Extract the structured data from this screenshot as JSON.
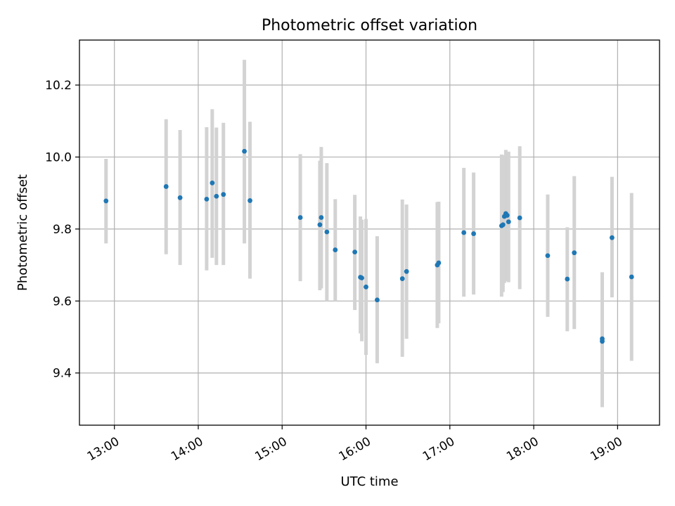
{
  "chart_data": {
    "type": "scatter",
    "title": "Photometric offset variation",
    "xlabel": "UTC time",
    "ylabel": "Photometric offset",
    "x_tick_labels": [
      "13:00",
      "14:00",
      "15:00",
      "16:00",
      "17:00",
      "18:00",
      "19:00"
    ],
    "y_tick_labels": [
      "9.4",
      "9.6",
      "9.8",
      "10.0",
      "10.2"
    ],
    "xlim": [
      "12:35",
      "19:30"
    ],
    "ylim": [
      9.255,
      10.325
    ],
    "grid": true,
    "points": [
      {
        "x": "12:54",
        "y": 9.878,
        "err_low": 9.76,
        "err_high": 9.995
      },
      {
        "x": "13:37",
        "y": 9.918,
        "err_low": 9.73,
        "err_high": 10.105
      },
      {
        "x": "13:47",
        "y": 9.887,
        "err_low": 9.7,
        "err_high": 10.075
      },
      {
        "x": "14:06",
        "y": 9.883,
        "err_low": 9.685,
        "err_high": 10.083
      },
      {
        "x": "14:10",
        "y": 9.928,
        "err_low": 9.72,
        "err_high": 10.133
      },
      {
        "x": "14:13",
        "y": 9.891,
        "err_low": 9.7,
        "err_high": 10.082
      },
      {
        "x": "14:18",
        "y": 9.896,
        "err_low": 9.7,
        "err_high": 10.095
      },
      {
        "x": "14:33",
        "y": 10.016,
        "err_low": 9.76,
        "err_high": 10.27
      },
      {
        "x": "14:37",
        "y": 9.879,
        "err_low": 9.662,
        "err_high": 10.098
      },
      {
        "x": "15:13",
        "y": 9.832,
        "err_low": 9.655,
        "err_high": 10.008
      },
      {
        "x": "15:27",
        "y": 9.812,
        "err_low": 9.63,
        "err_high": 9.99
      },
      {
        "x": "15:28",
        "y": 9.832,
        "err_low": 9.635,
        "err_high": 10.028
      },
      {
        "x": "15:32",
        "y": 9.792,
        "err_low": 9.6,
        "err_high": 9.983
      },
      {
        "x": "15:38",
        "y": 9.742,
        "err_low": 9.6,
        "err_high": 9.883
      },
      {
        "x": "15:52",
        "y": 9.736,
        "err_low": 9.575,
        "err_high": 9.895
      },
      {
        "x": "15:56",
        "y": 9.666,
        "err_low": 9.51,
        "err_high": 9.835
      },
      {
        "x": "15:57",
        "y": 9.664,
        "err_low": 9.488,
        "err_high": 9.826
      },
      {
        "x": "16:00",
        "y": 9.639,
        "err_low": 9.45,
        "err_high": 9.828
      },
      {
        "x": "16:08",
        "y": 9.603,
        "err_low": 9.427,
        "err_high": 9.78
      },
      {
        "x": "16:26",
        "y": 9.662,
        "err_low": 9.445,
        "err_high": 9.882
      },
      {
        "x": "16:29",
        "y": 9.682,
        "err_low": 9.495,
        "err_high": 9.868
      },
      {
        "x": "16:51",
        "y": 9.7,
        "err_low": 9.525,
        "err_high": 9.875
      },
      {
        "x": "16:52",
        "y": 9.706,
        "err_low": 9.538,
        "err_high": 9.876
      },
      {
        "x": "17:10",
        "y": 9.79,
        "err_low": 9.612,
        "err_high": 9.97
      },
      {
        "x": "17:17",
        "y": 9.787,
        "err_low": 9.618,
        "err_high": 9.957
      },
      {
        "x": "17:37",
        "y": 9.809,
        "err_low": 9.612,
        "err_high": 10.007
      },
      {
        "x": "17:38",
        "y": 9.812,
        "err_low": 9.625,
        "err_high": 10.0
      },
      {
        "x": "17:39",
        "y": 9.835,
        "err_low": 9.65,
        "err_high": 10.005
      },
      {
        "x": "17:40",
        "y": 9.843,
        "err_low": 9.66,
        "err_high": 10.02
      },
      {
        "x": "17:41",
        "y": 9.838,
        "err_low": 9.655,
        "err_high": 10.0
      },
      {
        "x": "17:42",
        "y": 9.82,
        "err_low": 9.652,
        "err_high": 10.015
      },
      {
        "x": "17:50",
        "y": 9.831,
        "err_low": 9.633,
        "err_high": 10.03
      },
      {
        "x": "18:10",
        "y": 9.726,
        "err_low": 9.556,
        "err_high": 9.896
      },
      {
        "x": "18:24",
        "y": 9.661,
        "err_low": 9.516,
        "err_high": 9.805
      },
      {
        "x": "18:29",
        "y": 9.734,
        "err_low": 9.522,
        "err_high": 9.947
      },
      {
        "x": "18:49",
        "y": 9.488,
        "err_low": 9.305,
        "err_high": 9.668
      },
      {
        "x": "18:49",
        "y": 9.495,
        "err_low": 9.31,
        "err_high": 9.68
      },
      {
        "x": "18:56",
        "y": 9.776,
        "err_low": 9.61,
        "err_high": 9.945
      },
      {
        "x": "19:10",
        "y": 9.667,
        "err_low": 9.434,
        "err_high": 9.9
      }
    ]
  },
  "colors": {
    "point": "#1f77b4",
    "errorbar": "#d3d3d3",
    "grid": "#b0b0b0",
    "frame": "#000000"
  }
}
